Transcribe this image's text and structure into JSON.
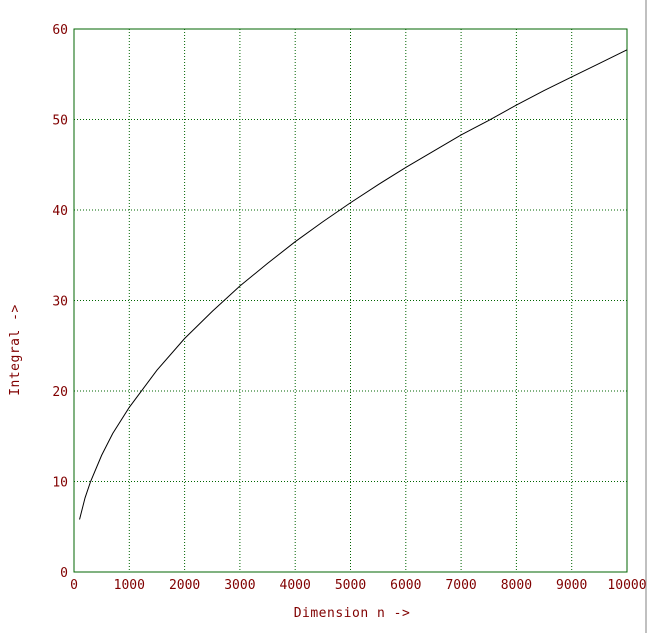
{
  "chart_data": {
    "type": "line",
    "title": "",
    "xlabel": "Dimension n ->",
    "ylabel": "Integral ->",
    "xlim": [
      0,
      10000
    ],
    "ylim": [
      0,
      60
    ],
    "xticks": [
      0,
      1000,
      2000,
      3000,
      4000,
      5000,
      6000,
      7000,
      8000,
      9000,
      10000
    ],
    "yticks": [
      0,
      10,
      20,
      30,
      40,
      50,
      60
    ],
    "xtick_labels": [
      "0",
      "1000",
      "2000",
      "3000",
      "4000",
      "5000",
      "6000",
      "7000",
      "8000",
      "9000",
      "10000"
    ],
    "ytick_labels": [
      "0",
      "10",
      "20",
      "30",
      "40",
      "50",
      "60"
    ],
    "grid": true,
    "series": [
      {
        "x": [
          100,
          200,
          300,
          500,
          700,
          1000,
          1500,
          2000,
          2500,
          3000,
          3500,
          4000,
          4500,
          5000,
          5500,
          6000,
          6500,
          7000,
          7500,
          8000,
          8500,
          9000,
          9500,
          10000
        ],
        "y": [
          5.8,
          8.2,
          10.0,
          12.9,
          15.3,
          18.2,
          22.3,
          25.8,
          28.8,
          31.6,
          34.1,
          36.5,
          38.7,
          40.8,
          42.8,
          44.7,
          46.5,
          48.3,
          49.9,
          51.6,
          53.2,
          54.7,
          56.2,
          57.7
        ]
      }
    ],
    "colors": {
      "frame": "#006400",
      "grid": "#006400",
      "labels": "#800000",
      "curve": "#000000"
    }
  }
}
